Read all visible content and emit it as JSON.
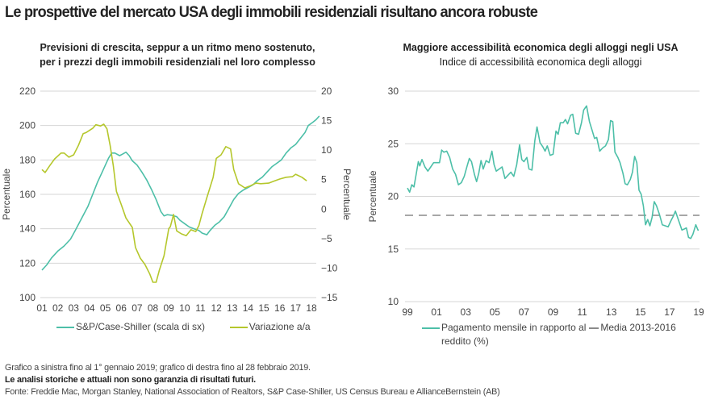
{
  "title": "Le prospettive del mercato USA degli immobili residenziali risultano ancora robuste",
  "colors": {
    "teal": "#4dbfa8",
    "lime": "#b5c72c",
    "grid": "#d6d6d6",
    "dash": "#8a8a8a"
  },
  "left_subtitle": [
    "Previsioni di crescita, seppur a un ritmo meno sostenuto,",
    "per i prezzi degli immobili residenziali nel loro complesso"
  ],
  "right_subtitle": [
    "Maggiore accessibilità economica degli alloggi negli USA",
    "Indice di accessibilità economica degli alloggi"
  ],
  "footnotes": {
    "note": "Grafico a sinistra fino al 1° gennaio 2019; grafico di destra fino al 28 febbraio 2019.",
    "disclaimer": "Le analisi storiche e attuali non sono garanzia di risultati futuri.",
    "source": "Fonte: Freddie Mac, Morgan Stanley, National Association of Realtors, S&P Case-Shiller, US Census Bureau e AllianceBernstein (AB)"
  },
  "chart_data": [
    {
      "type": "line",
      "title": "Previsioni di crescita, seppur a un ritmo meno sostenuto, per i prezzi degli immobili residenziali nel loro complesso",
      "ylabel": "Percentuale",
      "y2label": "Percentuale",
      "ylim": [
        100,
        220
      ],
      "y2lim": [
        -15,
        20
      ],
      "xlim": [
        2001,
        2018
      ],
      "x_tick_labels": [
        "01",
        "02",
        "03",
        "04",
        "05",
        "06",
        "07",
        "08",
        "09",
        "10",
        "11",
        "12",
        "13",
        "14",
        "15",
        "16",
        "17",
        "18"
      ],
      "y_ticks": [
        "100",
        "120",
        "140",
        "160",
        "180",
        "200",
        "220"
      ],
      "y2_ticks": [
        "−15",
        "−10",
        "−5",
        "0",
        "5",
        "10",
        "15",
        "20"
      ],
      "grid": true,
      "legend": "bottom",
      "series": [
        {
          "name": "S&P/Case-Shiller (scala di sx)",
          "axis": "left",
          "color": "#4dbfa8",
          "points": [
            [
              2001.0,
              116
            ],
            [
              2001.3,
              119
            ],
            [
              2001.6,
              123
            ],
            [
              2002.0,
              127
            ],
            [
              2002.4,
              130
            ],
            [
              2002.8,
              134
            ],
            [
              2003.1,
              139
            ],
            [
              2003.5,
              146
            ],
            [
              2003.9,
              153
            ],
            [
              2004.2,
              160
            ],
            [
              2004.5,
              167
            ],
            [
              2004.8,
              173
            ],
            [
              2005.0,
              177
            ],
            [
              2005.2,
              181
            ],
            [
              2005.4,
              184
            ],
            [
              2005.6,
              184
            ],
            [
              2005.9,
              182.5
            ],
            [
              2006.1,
              183.5
            ],
            [
              2006.3,
              184.5
            ],
            [
              2006.5,
              182.5
            ],
            [
              2006.7,
              179.5
            ],
            [
              2007.0,
              177
            ],
            [
              2007.3,
              173
            ],
            [
              2007.6,
              168.5
            ],
            [
              2007.9,
              163
            ],
            [
              2008.2,
              157
            ],
            [
              2008.5,
              150
            ],
            [
              2008.7,
              147.5
            ],
            [
              2008.9,
              148.2
            ],
            [
              2009.2,
              147.8
            ],
            [
              2009.5,
              147
            ],
            [
              2009.7,
              145
            ],
            [
              2010.0,
              143
            ],
            [
              2010.3,
              141
            ],
            [
              2010.6,
              140
            ],
            [
              2010.9,
              139
            ],
            [
              2011.1,
              137.5
            ],
            [
              2011.4,
              136.5
            ],
            [
              2011.6,
              139
            ],
            [
              2011.9,
              142
            ],
            [
              2012.2,
              144
            ],
            [
              2012.5,
              147
            ],
            [
              2012.8,
              152
            ],
            [
              2013.1,
              157
            ],
            [
              2013.4,
              160.5
            ],
            [
              2013.7,
              162.5
            ],
            [
              2014.0,
              164
            ],
            [
              2014.3,
              165.5
            ],
            [
              2014.6,
              168
            ],
            [
              2014.9,
              170
            ],
            [
              2015.2,
              173
            ],
            [
              2015.5,
              176
            ],
            [
              2015.8,
              178
            ],
            [
              2016.1,
              180
            ],
            [
              2016.4,
              184
            ],
            [
              2016.7,
              187
            ],
            [
              2017.0,
              189
            ],
            [
              2017.3,
              192.5
            ],
            [
              2017.6,
              196
            ],
            [
              2017.8,
              200
            ],
            [
              2018.1,
              202
            ],
            [
              2018.3,
              203.5
            ],
            [
              2018.5,
              205.5
            ]
          ]
        },
        {
          "name": "Variazione a/a",
          "axis": "right",
          "color": "#b5c72c",
          "points": [
            [
              2001.0,
              6.7
            ],
            [
              2001.2,
              6.2
            ],
            [
              2001.5,
              7.4
            ],
            [
              2001.8,
              8.5
            ],
            [
              2002.2,
              9.5
            ],
            [
              2002.4,
              9.5
            ],
            [
              2002.7,
              8.8
            ],
            [
              2003.0,
              9.2
            ],
            [
              2003.3,
              10.8
            ],
            [
              2003.6,
              12.8
            ],
            [
              2003.8,
              13.0
            ],
            [
              2004.2,
              13.7
            ],
            [
              2004.4,
              14.3
            ],
            [
              2004.7,
              14.1
            ],
            [
              2004.9,
              14.4
            ],
            [
              2005.1,
              13.6
            ],
            [
              2005.3,
              10.8
            ],
            [
              2005.5,
              7.4
            ],
            [
              2005.7,
              3.0
            ],
            [
              2006.0,
              0.8
            ],
            [
              2006.3,
              -1.5
            ],
            [
              2006.7,
              -3.1
            ],
            [
              2006.9,
              -6.5
            ],
            [
              2007.2,
              -8.3
            ],
            [
              2007.5,
              -9.4
            ],
            [
              2007.8,
              -11.0
            ],
            [
              2008.0,
              -12.4
            ],
            [
              2008.2,
              -12.4
            ],
            [
              2008.4,
              -10.4
            ],
            [
              2008.7,
              -7.9
            ],
            [
              2009.0,
              -3.3
            ],
            [
              2009.1,
              -3.0
            ],
            [
              2009.3,
              -0.9
            ],
            [
              2009.5,
              -3.7
            ],
            [
              2009.8,
              -4.2
            ],
            [
              2010.1,
              -4.5
            ],
            [
              2010.4,
              -3.5
            ],
            [
              2010.7,
              -3.8
            ],
            [
              2010.9,
              -2.8
            ],
            [
              2011.1,
              -0.8
            ],
            [
              2011.4,
              1.9
            ],
            [
              2011.8,
              5.4
            ],
            [
              2012.0,
              8.6
            ],
            [
              2012.3,
              9.2
            ],
            [
              2012.6,
              10.6
            ],
            [
              2012.9,
              10.2
            ],
            [
              2013.1,
              6.7
            ],
            [
              2013.4,
              4.3
            ],
            [
              2013.8,
              3.6
            ],
            [
              2014.1,
              3.9
            ],
            [
              2014.5,
              4.4
            ],
            [
              2014.8,
              4.3
            ],
            [
              2015.3,
              4.4
            ],
            [
              2015.6,
              4.7
            ],
            [
              2016.0,
              5.1
            ],
            [
              2016.4,
              5.4
            ],
            [
              2016.8,
              5.5
            ],
            [
              2017.0,
              5.9
            ],
            [
              2017.4,
              5.4
            ],
            [
              2017.7,
              4.8
            ]
          ]
        }
      ]
    },
    {
      "type": "line",
      "title": "Maggiore accessibilità economica degli alloggi negli USA",
      "subtitle": "Indice di accessibilità economica degli alloggi",
      "ylabel": "Percentuale",
      "ylim": [
        10,
        30
      ],
      "xlim": [
        1999,
        2019
      ],
      "x_tick_labels": [
        "99",
        "01",
        "03",
        "05",
        "07",
        "09",
        "11",
        "13",
        "15",
        "17",
        "19"
      ],
      "y_ticks": [
        "10",
        "15",
        "20",
        "25",
        "30"
      ],
      "grid": true,
      "legend": "bottom",
      "series": [
        {
          "name": "Pagamento mensile in rapporto al reddito (%)",
          "style": "solid",
          "color": "#4dbfa8",
          "points": [
            [
              1999.0,
              20.8
            ],
            [
              1999.15,
              20.4
            ],
            [
              1999.3,
              21.1
            ],
            [
              1999.45,
              20.9
            ],
            [
              1999.6,
              22.1
            ],
            [
              1999.75,
              23.3
            ],
            [
              1999.85,
              22.9
            ],
            [
              2000.0,
              23.5
            ],
            [
              2000.2,
              22.8
            ],
            [
              2000.4,
              22.4
            ],
            [
              2000.6,
              22.8
            ],
            [
              2000.8,
              23.2
            ],
            [
              2001.0,
              23.2
            ],
            [
              2001.2,
              23.2
            ],
            [
              2001.35,
              24.4
            ],
            [
              2001.5,
              24.2
            ],
            [
              2001.7,
              24.3
            ],
            [
              2001.9,
              23.7
            ],
            [
              2002.1,
              22.6
            ],
            [
              2002.3,
              22.1
            ],
            [
              2002.5,
              21.1
            ],
            [
              2002.7,
              21.3
            ],
            [
              2002.9,
              21.9
            ],
            [
              2003.1,
              22.9
            ],
            [
              2003.25,
              23.6
            ],
            [
              2003.4,
              23.3
            ],
            [
              2003.6,
              22.1
            ],
            [
              2003.75,
              21.4
            ],
            [
              2003.9,
              22.2
            ],
            [
              2004.05,
              23.4
            ],
            [
              2004.2,
              22.6
            ],
            [
              2004.4,
              23.4
            ],
            [
              2004.6,
              23.2
            ],
            [
              2004.8,
              24.3
            ],
            [
              2004.95,
              23.0
            ],
            [
              2005.1,
              22.4
            ],
            [
              2005.3,
              22.6
            ],
            [
              2005.5,
              22.8
            ],
            [
              2005.7,
              21.7
            ],
            [
              2005.9,
              22.0
            ],
            [
              2006.1,
              22.3
            ],
            [
              2006.3,
              21.9
            ],
            [
              2006.5,
              23.0
            ],
            [
              2006.7,
              24.9
            ],
            [
              2006.85,
              23.5
            ],
            [
              2007.0,
              23.3
            ],
            [
              2007.2,
              23.7
            ],
            [
              2007.35,
              22.6
            ],
            [
              2007.55,
              22.5
            ],
            [
              2007.75,
              25.3
            ],
            [
              2007.9,
              26.6
            ],
            [
              2008.1,
              25.1
            ],
            [
              2008.3,
              24.7
            ],
            [
              2008.45,
              24.3
            ],
            [
              2008.6,
              24.8
            ],
            [
              2008.8,
              23.9
            ],
            [
              2009.0,
              24.0
            ],
            [
              2009.2,
              26.2
            ],
            [
              2009.35,
              25.9
            ],
            [
              2009.5,
              27.0
            ],
            [
              2009.7,
              27.0
            ],
            [
              2009.85,
              27.3
            ],
            [
              2010.0,
              26.9
            ],
            [
              2010.2,
              27.7
            ],
            [
              2010.35,
              27.8
            ],
            [
              2010.55,
              26.0
            ],
            [
              2010.75,
              25.9
            ],
            [
              2010.95,
              27.0
            ],
            [
              2011.1,
              28.2
            ],
            [
              2011.3,
              28.6
            ],
            [
              2011.5,
              27.1
            ],
            [
              2011.7,
              26.2
            ],
            [
              2011.85,
              25.5
            ],
            [
              2012.0,
              25.6
            ],
            [
              2012.2,
              24.3
            ],
            [
              2012.4,
              24.6
            ],
            [
              2012.6,
              24.8
            ],
            [
              2012.8,
              25.4
            ],
            [
              2012.95,
              27.2
            ],
            [
              2013.1,
              27.1
            ],
            [
              2013.25,
              24.2
            ],
            [
              2013.45,
              23.7
            ],
            [
              2013.6,
              23.2
            ],
            [
              2013.8,
              22.2
            ],
            [
              2013.95,
              21.2
            ],
            [
              2014.1,
              21.1
            ],
            [
              2014.3,
              21.6
            ],
            [
              2014.45,
              22.3
            ],
            [
              2014.6,
              23.8
            ],
            [
              2014.75,
              23.2
            ],
            [
              2014.9,
              20.6
            ],
            [
              2015.05,
              20.2
            ],
            [
              2015.2,
              19.1
            ],
            [
              2015.35,
              17.3
            ],
            [
              2015.5,
              17.8
            ],
            [
              2015.65,
              17.2
            ],
            [
              2015.8,
              18.0
            ],
            [
              2015.95,
              19.5
            ],
            [
              2016.1,
              19.1
            ],
            [
              2016.3,
              18.3
            ],
            [
              2016.5,
              17.3
            ],
            [
              2016.7,
              17.2
            ],
            [
              2016.9,
              17.1
            ],
            [
              2017.1,
              17.7
            ],
            [
              2017.25,
              18.1
            ],
            [
              2017.4,
              18.6
            ],
            [
              2017.55,
              18.0
            ],
            [
              2017.7,
              17.4
            ],
            [
              2017.85,
              16.8
            ],
            [
              2018.0,
              16.9
            ],
            [
              2018.15,
              17.0
            ],
            [
              2018.3,
              16.1
            ],
            [
              2018.45,
              16.0
            ],
            [
              2018.6,
              16.4
            ],
            [
              2018.8,
              17.3
            ],
            [
              2018.95,
              16.8
            ],
            [
              2019.0,
              16.8
            ]
          ]
        },
        {
          "name": "Media 2013-2016",
          "style": "dashed",
          "color": "#8a8a8a",
          "value": 18.2
        }
      ]
    }
  ]
}
